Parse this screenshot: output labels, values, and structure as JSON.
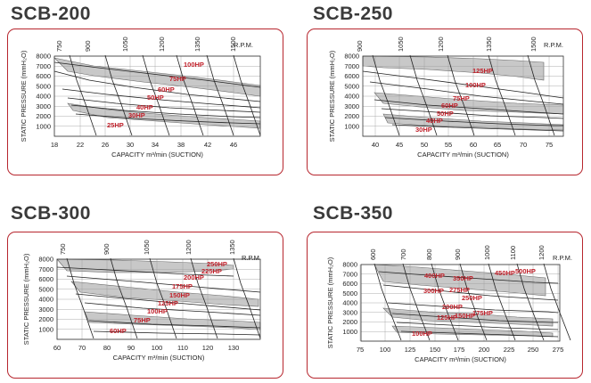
{
  "colors": {
    "accent": "#b7262e",
    "band": "#c8c8c8",
    "hp_label": "#c0202a"
  },
  "chart_data": [
    {
      "type": "line",
      "title": "SCB-200",
      "xlabel": "CAPACITY m³/min (SUCTION)",
      "ylabel": "STATIC PRESSURE (mmH₂O)",
      "rpm_label": "R.P.M.",
      "x_ticks": [
        "18",
        "22",
        "26",
        "30",
        "34",
        "38",
        "42",
        "46"
      ],
      "y_ticks": [
        "1000",
        "2000",
        "3000",
        "4000",
        "5000",
        "6000",
        "7000",
        "8000"
      ],
      "rpm_ticks": [
        "750",
        "900",
        "1050",
        "1200",
        "1350",
        "1500"
      ],
      "hp_labels": [
        "100HP",
        "75HP",
        "60HP",
        "50HP",
        "40HP",
        "30HP",
        "25HP"
      ]
    },
    {
      "type": "line",
      "title": "SCB-250",
      "xlabel": "CAPACITY m³/min (SUCTION)",
      "ylabel": "STATIC PRESSURE (mmH₂O)",
      "rpm_label": "R.P.M.",
      "x_ticks": [
        "40",
        "45",
        "50",
        "55",
        "60",
        "65",
        "70",
        "75"
      ],
      "y_ticks": [
        "1000",
        "2000",
        "3000",
        "4000",
        "5000",
        "6000",
        "7000",
        "8000"
      ],
      "rpm_ticks": [
        "900",
        "1050",
        "1200",
        "1350",
        "1500"
      ],
      "hp_labels": [
        "125HP",
        "100HP",
        "75HP",
        "60HP",
        "50HP",
        "40HP",
        "30HP"
      ]
    },
    {
      "type": "line",
      "title": "SCB-300",
      "xlabel": "CAPACITY m³/min (SUCTION)",
      "ylabel": "STATIC PRESSURE (mmH₂O)",
      "rpm_label": "R.P.M.",
      "x_ticks": [
        "60",
        "70",
        "80",
        "90",
        "100",
        "110",
        "120",
        "130"
      ],
      "y_ticks": [
        "1000",
        "2000",
        "3000",
        "4000",
        "5000",
        "6000",
        "7000",
        "8000"
      ],
      "rpm_ticks": [
        "750",
        "900",
        "1050",
        "1200",
        "1350"
      ],
      "hp_labels": [
        "250HP",
        "225HP",
        "200HP",
        "175HP",
        "150HP",
        "125HP",
        "100HP",
        "75HP",
        "60HP"
      ]
    },
    {
      "type": "line",
      "title": "SCB-350",
      "xlabel": "CAPACITY m³/min (SUCTION)",
      "ylabel": "STATIC PRESSURE (mmH₂O)",
      "rpm_label": "R.P.M.",
      "x_ticks": [
        "75",
        "100",
        "125",
        "150",
        "175",
        "200",
        "225",
        "250",
        "275"
      ],
      "y_ticks": [
        "1000",
        "2000",
        "3000",
        "4000",
        "5000",
        "6000",
        "7000",
        "8000"
      ],
      "rpm_ticks": [
        "600",
        "700",
        "800",
        "900",
        "1000",
        "1100",
        "1200"
      ],
      "hp_labels": [
        "500HP",
        "450HP",
        "400HP",
        "350HP",
        "300HP",
        "275HP",
        "250HP",
        "200HP",
        "175HP",
        "150HP",
        "125HP",
        "100HP"
      ]
    }
  ]
}
